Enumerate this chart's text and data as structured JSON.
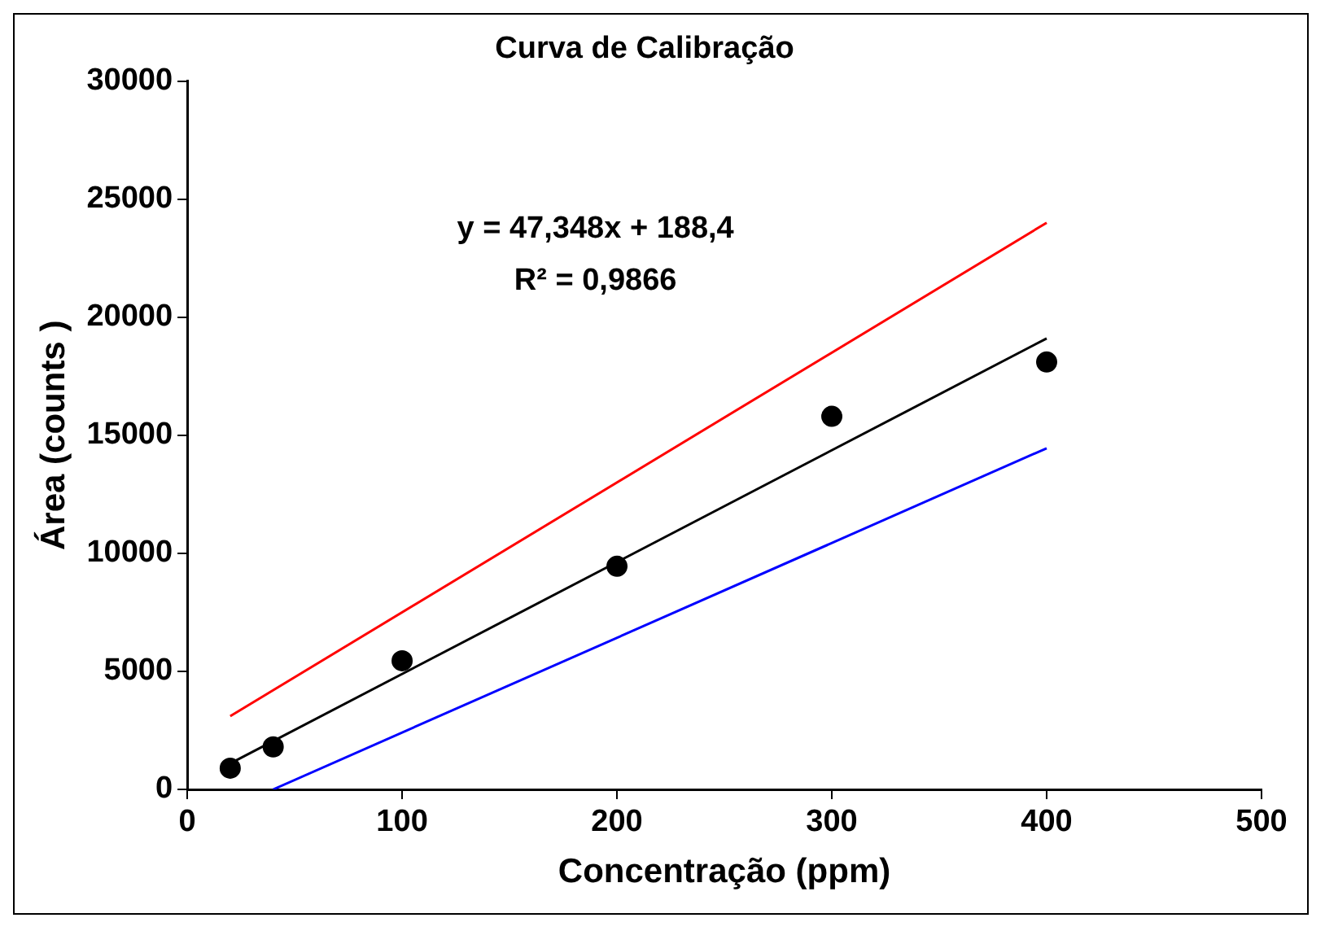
{
  "chart_data": {
    "type": "scatter",
    "title": "Curva de Calibração",
    "xlabel": "Concentração (ppm)",
    "ylabel": "Área (counts )",
    "annotations": [
      "y = 47,348x + 188,4",
      "R² = 0,9866"
    ],
    "xlim": [
      0,
      500
    ],
    "xticks": [
      0,
      100,
      200,
      300,
      400,
      500
    ],
    "ylim": [
      0,
      30000
    ],
    "yticks": [
      0,
      5000,
      10000,
      15000,
      20000,
      25000,
      30000
    ],
    "grid": false,
    "legend": false,
    "series": [
      {
        "type": "scatter",
        "color": "#000000",
        "marker": "circle",
        "x": [
          20,
          40,
          100,
          200,
          300,
          400
        ],
        "values": [
          900,
          1800,
          5450,
          9450,
          15800,
          18100
        ]
      },
      {
        "type": "line",
        "color": "#000000",
        "marker": "none",
        "x": [
          20,
          400
        ],
        "values": [
          1100,
          19100
        ]
      },
      {
        "type": "line",
        "color": "#ff0000",
        "marker": "none",
        "x": [
          20,
          400
        ],
        "values": [
          3100,
          24000
        ]
      },
      {
        "type": "line",
        "color": "#0000ff",
        "marker": "none",
        "x": [
          40,
          400
        ],
        "values": [
          0,
          14450
        ]
      }
    ]
  }
}
